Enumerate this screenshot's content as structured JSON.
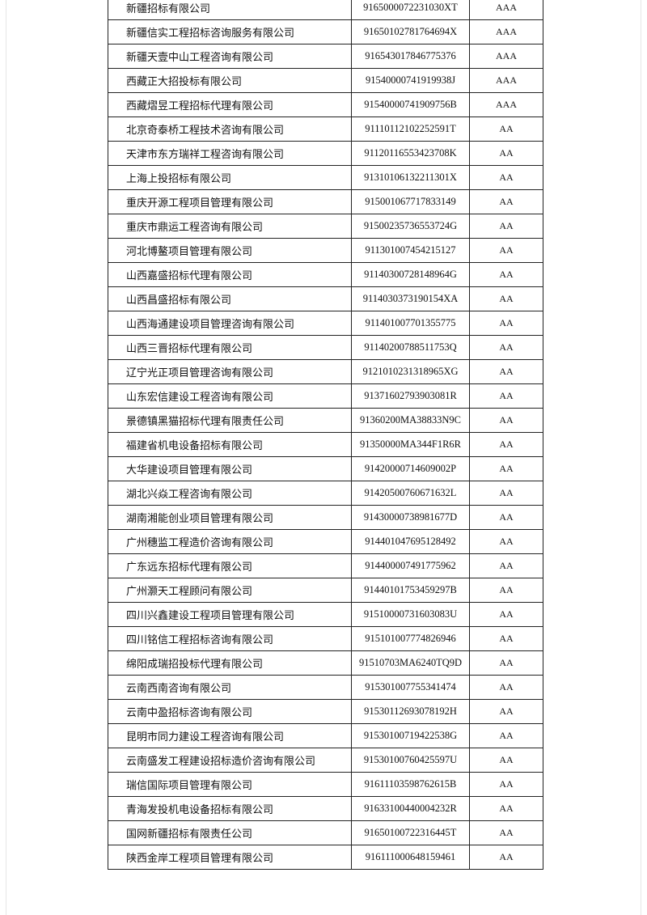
{
  "table": {
    "rows": [
      [
        "新疆招标有限公司",
        "9165000072231030XT",
        "AAA"
      ],
      [
        "新疆信实工程招标咨询服务有限公司",
        "91650102781764694X",
        "AAA"
      ],
      [
        "新疆天壹中山工程咨询有限公司",
        "916543017846775376",
        "AAA"
      ],
      [
        "西藏正大招投标有限公司",
        "91540000741919938J",
        "AAA"
      ],
      [
        "西藏熠昱工程招标代理有限公司",
        "91540000741909756B",
        "AAA"
      ],
      [
        "北京奇泰桥工程技术咨询有限公司",
        "91110112102252591T",
        "AA"
      ],
      [
        "天津市东方瑞祥工程咨询有限公司",
        "91120116553423708K",
        "AA"
      ],
      [
        "上海上投招标有限公司",
        "91310106132211301X",
        "AA"
      ],
      [
        "重庆开源工程项目管理有限公司",
        "915001067717833149",
        "AA"
      ],
      [
        "重庆市鼎运工程咨询有限公司",
        "91500235736553724G",
        "AA"
      ],
      [
        "河北博鳌项目管理有限公司",
        "911301007454215127",
        "AA"
      ],
      [
        "山西嘉盛招标代理有限公司",
        "91140300728148964G",
        "AA"
      ],
      [
        "山西昌盛招标有限公司",
        "9114030373190154XA",
        "AA"
      ],
      [
        "山西海通建设项目管理咨询有限公司",
        "911401007701355775",
        "AA"
      ],
      [
        "山西三晋招标代理有限公司",
        "91140200788511753Q",
        "AA"
      ],
      [
        "辽宁光正项目管理咨询有限公司",
        "9121010231318965XG",
        "AA"
      ],
      [
        "山东宏信建设工程咨询有限公司",
        "91371602793903081R",
        "AA"
      ],
      [
        "景德镇黑猫招标代理有限责任公司",
        "91360200MA38833N9C",
        "AA"
      ],
      [
        "福建省机电设备招标有限公司",
        "91350000MA344F1R6R",
        "AA"
      ],
      [
        "大华建设项目管理有限公司",
        "91420000714609002P",
        "AA"
      ],
      [
        "湖北兴焱工程咨询有限公司",
        "91420500760671632L",
        "AA"
      ],
      [
        "湖南湘能创业项目管理有限公司",
        "91430000738981677D",
        "AA"
      ],
      [
        "广州穗监工程造价咨询有限公司",
        "914401047695128492",
        "AA"
      ],
      [
        "广东远东招标代理有限公司",
        "914400007491775962",
        "AA"
      ],
      [
        "广州灏天工程顾问有限公司",
        "91440101753459297B",
        "AA"
      ],
      [
        "四川兴鑫建设工程项目管理有限公司",
        "91510000731603083U",
        "AA"
      ],
      [
        "四川铭信工程招标咨询有限公司",
        "915101007774826946",
        "AA"
      ],
      [
        "绵阳成瑞招投标代理有限公司",
        "91510703MA6240TQ9D",
        "AA"
      ],
      [
        "云南西南咨询有限公司",
        "915301007755341474",
        "AA"
      ],
      [
        "云南中盈招标咨询有限公司",
        "91530112693078192H",
        "AA"
      ],
      [
        "昆明市同力建设工程咨询有限公司",
        "91530100719422538G",
        "AA"
      ],
      [
        "云南盛发工程建设招标造价咨询有限公司",
        "91530100760425597U",
        "AA"
      ],
      [
        "瑞信国际项目管理有限公司",
        "91611103598762615B",
        "AA"
      ],
      [
        "青海发投机电设备招标有限公司",
        "91633100440004232R",
        "AA"
      ],
      [
        "国网新疆招标有限责任公司",
        "91650100722316445T",
        "AA"
      ],
      [
        "陕西金岸工程项目管理有限公司",
        "916111000648159461",
        "AA"
      ]
    ]
  }
}
